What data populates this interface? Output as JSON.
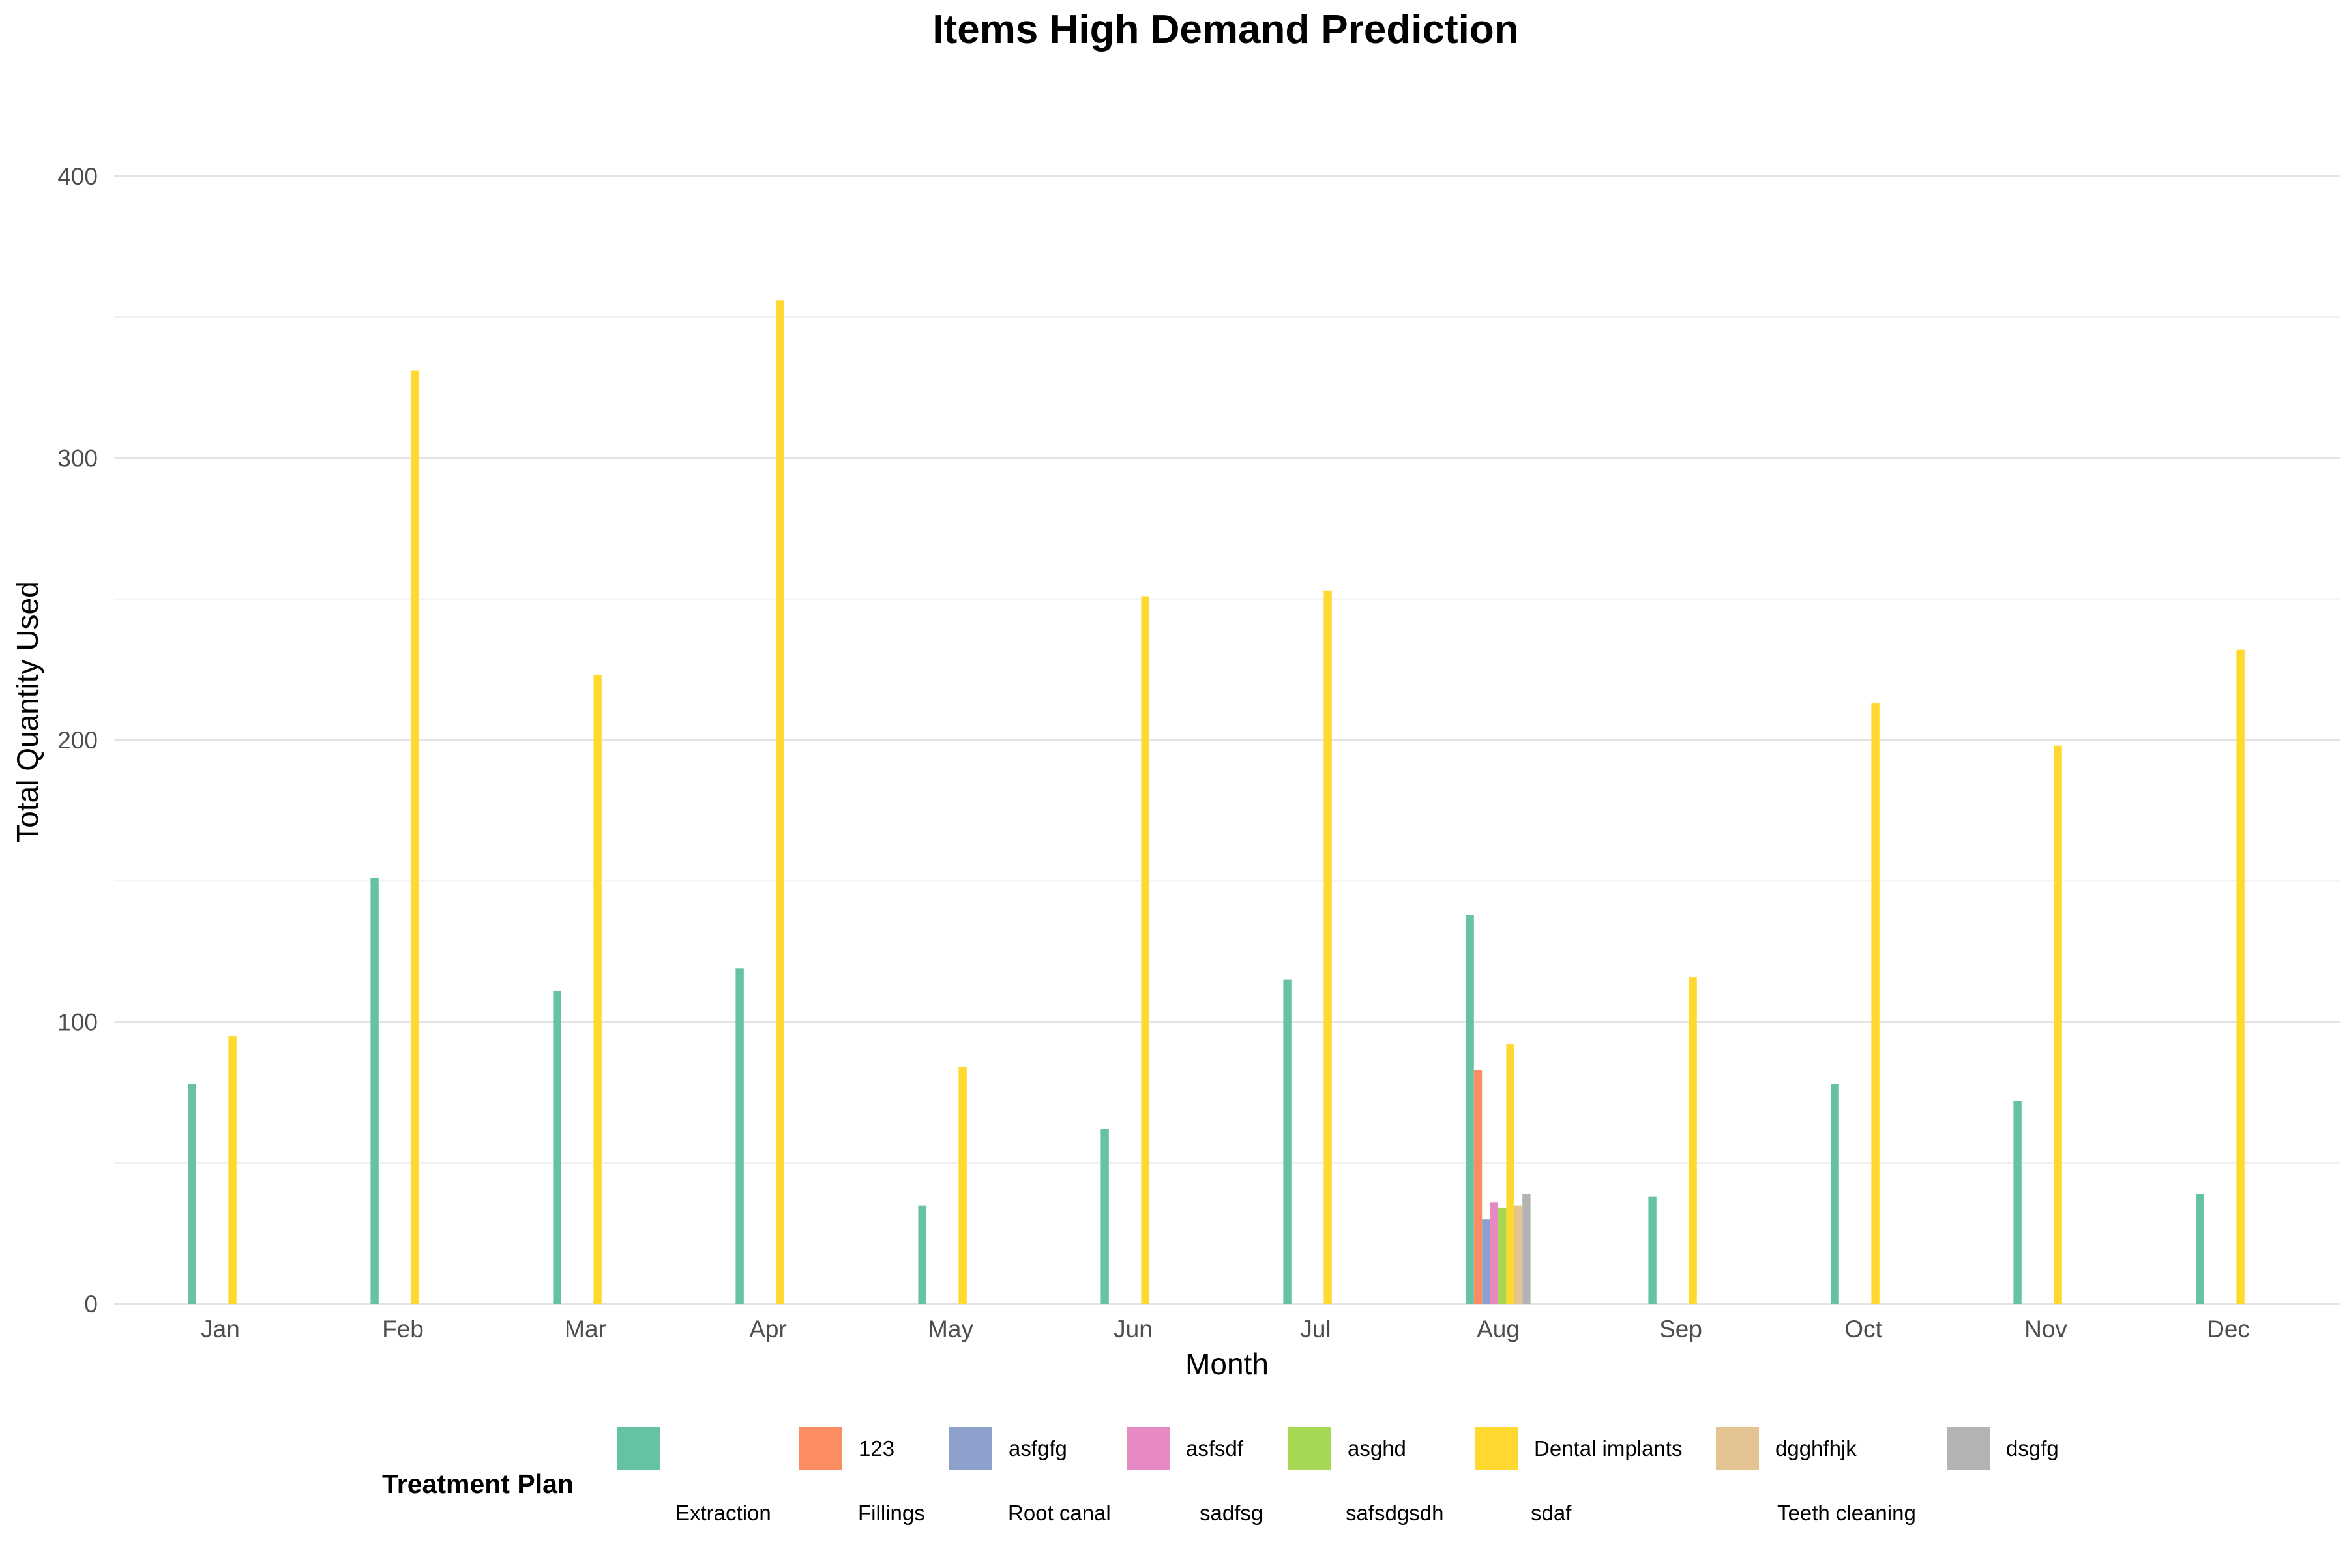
{
  "chart_data": {
    "type": "bar",
    "title": "Items High Demand Prediction",
    "xlabel": "Month",
    "ylabel": "Total Quantity Used",
    "ylim": [
      0,
      420
    ],
    "yticks": [
      0,
      100,
      200,
      300,
      400
    ],
    "grid": true,
    "legend_position": "bottom",
    "legend_title": "Treatment Plan",
    "categories": [
      "Jan",
      "Feb",
      "Mar",
      "Apr",
      "May",
      "Jun",
      "Jul",
      "Aug",
      "Sep",
      "Oct",
      "Nov",
      "Dec"
    ],
    "series": [
      {
        "name": "",
        "color": "#66C2A5",
        "values": [
          78,
          151,
          111,
          119,
          35,
          62,
          115,
          138,
          38,
          78,
          72,
          39
        ]
      },
      {
        "name": "123",
        "color": "#FC8D62",
        "values": [
          0,
          0,
          0,
          0,
          0,
          0,
          0,
          83,
          0,
          0,
          0,
          0
        ]
      },
      {
        "name": "asfgfg",
        "color": "#8DA0CB",
        "values": [
          0,
          0,
          0,
          0,
          0,
          0,
          0,
          30,
          0,
          0,
          0,
          0
        ]
      },
      {
        "name": "asfsdf",
        "color": "#E78AC3",
        "values": [
          0,
          0,
          0,
          0,
          0,
          0,
          0,
          36,
          0,
          0,
          0,
          0
        ]
      },
      {
        "name": "asghd",
        "color": "#A6D854",
        "values": [
          0,
          0,
          0,
          0,
          0,
          0,
          0,
          34,
          0,
          0,
          0,
          0
        ]
      },
      {
        "name": "Dental implants",
        "color": "#FFD92F",
        "values": [
          95,
          331,
          223,
          356,
          84,
          251,
          253,
          92,
          116,
          213,
          198,
          232
        ]
      },
      {
        "name": "dgghfhjk",
        "color": "#E5C494",
        "values": [
          0,
          0,
          0,
          0,
          0,
          0,
          0,
          35,
          0,
          0,
          0,
          0
        ]
      },
      {
        "name": "dsgfg",
        "color": "#B3B3B3",
        "values": [
          0,
          0,
          0,
          0,
          0,
          0,
          0,
          39,
          0,
          0,
          0,
          0
        ]
      }
    ],
    "legend_row2_labels": [
      "Extraction",
      "Fillings",
      "Root canal",
      "sadfsg",
      "safsdgsdh",
      "sdaf",
      "Teeth cleaning"
    ]
  }
}
